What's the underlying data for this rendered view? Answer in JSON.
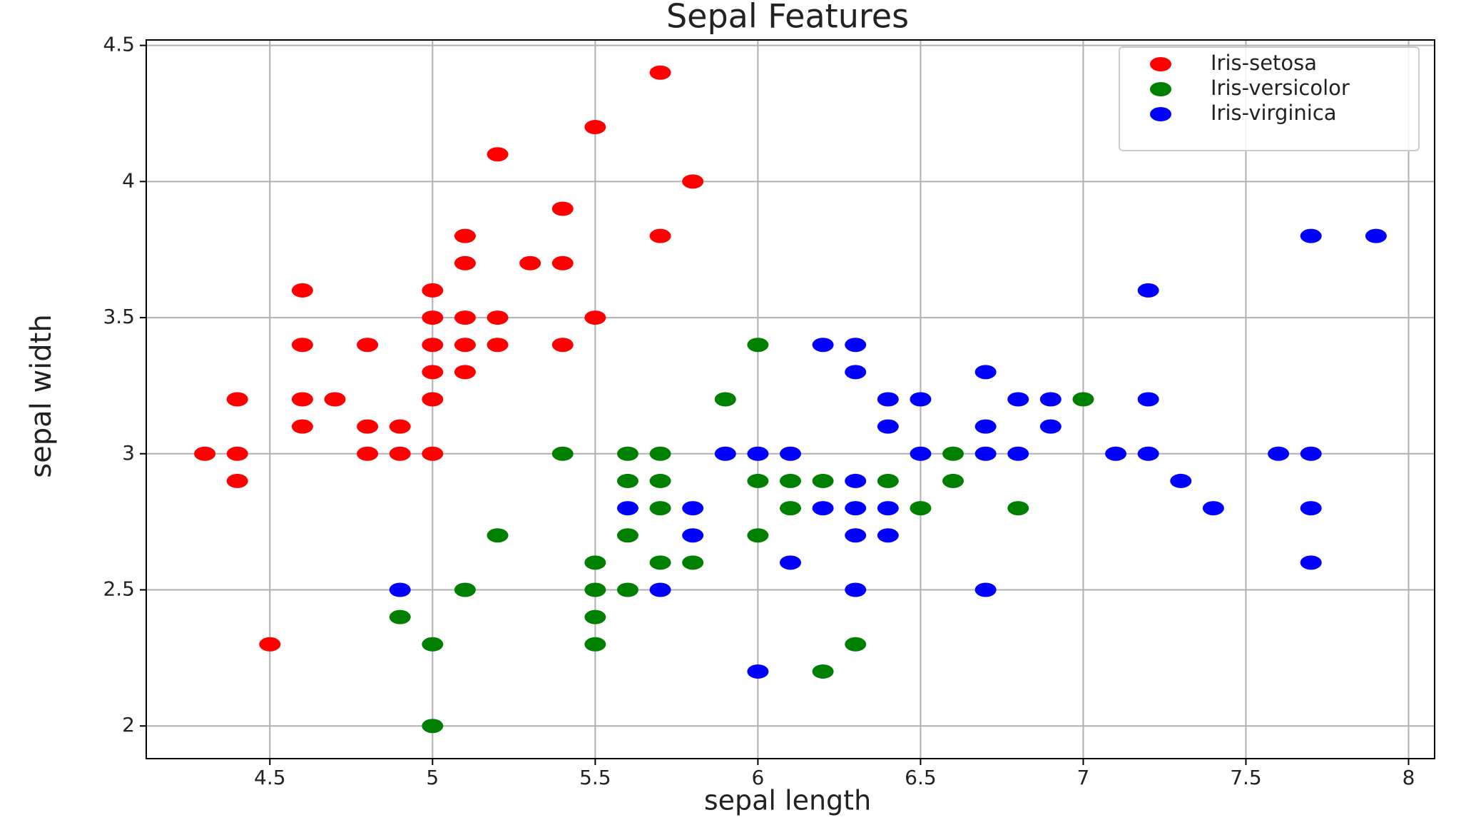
{
  "chart_data": {
    "type": "scatter",
    "title": "Sepal Features",
    "x_label": "sepal length",
    "y_label": "sepal width",
    "xlim": [
      4.12,
      8.08
    ],
    "ylim": [
      1.88,
      4.52
    ],
    "xticks": [
      4.5,
      5.0,
      5.5,
      6.0,
      6.5,
      7.0,
      7.5,
      8.0
    ],
    "yticks": [
      2.0,
      2.5,
      3.0,
      3.5,
      4.0,
      4.5
    ],
    "grid": true,
    "legend": "upper right",
    "series": [
      {
        "name": "Iris-setosa",
        "color": "#ff0000",
        "x": [
          5.7,
          5.5,
          5.2,
          5.8,
          5.4,
          5.1,
          5.7,
          5.1,
          5.3,
          5.4,
          4.6,
          5.0,
          5.0,
          5.1,
          5.2,
          5.5,
          4.6,
          4.8,
          5.0,
          5.1,
          5.2,
          5.4,
          5.0,
          5.1,
          4.4,
          4.6,
          4.7,
          5.0,
          4.6,
          4.8,
          4.9,
          4.3,
          4.4,
          4.8,
          4.9,
          5.0,
          4.4,
          4.5
        ],
        "values": [
          4.4,
          4.2,
          4.1,
          4.0,
          3.9,
          3.8,
          3.8,
          3.7,
          3.7,
          3.7,
          3.6,
          3.6,
          3.5,
          3.5,
          3.5,
          3.5,
          3.4,
          3.4,
          3.4,
          3.4,
          3.4,
          3.4,
          3.3,
          3.3,
          3.2,
          3.2,
          3.2,
          3.2,
          3.1,
          3.1,
          3.1,
          3.0,
          3.0,
          3.0,
          3.0,
          3.0,
          2.9,
          2.3
        ]
      },
      {
        "name": "Iris-versicolor",
        "color": "#008000",
        "x": [
          6.0,
          5.9,
          7.0,
          5.4,
          5.6,
          5.7,
          6.6,
          5.6,
          5.7,
          6.0,
          6.1,
          6.2,
          6.4,
          6.6,
          5.7,
          6.1,
          6.5,
          6.8,
          5.2,
          5.6,
          6.0,
          5.5,
          5.7,
          5.8,
          4.9,
          5.5,
          5.1,
          5.5,
          5.6,
          5.0,
          5.5,
          6.3,
          6.2,
          5.0
        ],
        "values": [
          3.4,
          3.2,
          3.2,
          3.0,
          3.0,
          3.0,
          3.0,
          2.9,
          2.9,
          2.9,
          2.9,
          2.9,
          2.9,
          2.9,
          2.8,
          2.8,
          2.8,
          2.8,
          2.7,
          2.7,
          2.7,
          2.6,
          2.6,
          2.6,
          2.4,
          2.4,
          2.5,
          2.5,
          2.5,
          2.3,
          2.3,
          2.3,
          2.2,
          2.0
        ]
      },
      {
        "name": "Iris-virginica",
        "color": "#0000ff",
        "x": [
          7.7,
          7.9,
          7.2,
          6.2,
          6.3,
          6.3,
          6.7,
          6.4,
          6.5,
          6.8,
          6.9,
          7.2,
          6.4,
          6.7,
          6.9,
          5.9,
          6.0,
          6.1,
          6.5,
          6.7,
          6.8,
          7.1,
          7.2,
          7.6,
          7.7,
          6.3,
          7.3,
          5.6,
          5.8,
          6.2,
          6.3,
          6.4,
          7.4,
          7.7,
          5.8,
          6.3,
          6.4,
          6.1,
          7.7,
          4.9,
          5.7,
          6.3,
          6.7,
          6.0
        ],
        "values": [
          3.8,
          3.8,
          3.6,
          3.4,
          3.4,
          3.3,
          3.3,
          3.2,
          3.2,
          3.2,
          3.2,
          3.2,
          3.1,
          3.1,
          3.1,
          3.0,
          3.0,
          3.0,
          3.0,
          3.0,
          3.0,
          3.0,
          3.0,
          3.0,
          3.0,
          2.9,
          2.9,
          2.8,
          2.8,
          2.8,
          2.8,
          2.8,
          2.8,
          2.8,
          2.7,
          2.7,
          2.7,
          2.6,
          2.6,
          2.5,
          2.5,
          2.5,
          2.5,
          2.2
        ]
      }
    ]
  }
}
